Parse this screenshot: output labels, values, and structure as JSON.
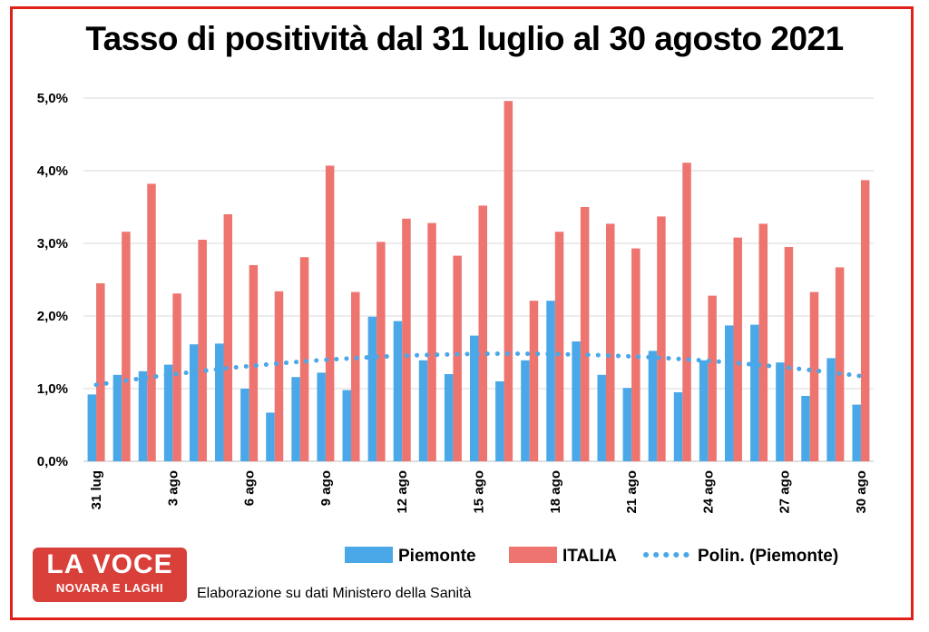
{
  "chart_data": {
    "type": "bar",
    "title": "Tasso di positività dal 31 luglio al 30 agosto 2021",
    "xlabel": "",
    "ylabel": "",
    "ylim": [
      0,
      5
    ],
    "yticks": [
      "0,0%",
      "1,0%",
      "2,0%",
      "3,0%",
      "4,0%",
      "5,0%"
    ],
    "grid": true,
    "legend_placement": "bottom",
    "categories": [
      "31 lug",
      "1 ago",
      "2 ago",
      "3 ago",
      "4 ago",
      "5 ago",
      "6 ago",
      "7 ago",
      "8 ago",
      "9 ago",
      "10 ago",
      "11 ago",
      "12 ago",
      "13 ago",
      "14 ago",
      "15 ago",
      "16 ago",
      "17 ago",
      "18 ago",
      "19 ago",
      "20 ago",
      "21 ago",
      "22 ago",
      "23 ago",
      "24 ago",
      "25 ago",
      "26 ago",
      "27 ago",
      "28 ago",
      "29 ago",
      "30 ago"
    ],
    "shown_tick_labels": [
      "31 lug",
      "3 ago",
      "6 ago",
      "9 ago",
      "12 ago",
      "15 ago",
      "18 ago",
      "21 ago",
      "24 ago",
      "27 ago",
      "30 ago"
    ],
    "series": [
      {
        "name": "Piemonte",
        "color": "#4aa8e8",
        "values": [
          0.92,
          1.19,
          1.24,
          1.33,
          1.61,
          1.62,
          1.0,
          0.67,
          1.16,
          1.22,
          0.98,
          1.99,
          1.93,
          1.39,
          1.2,
          1.73,
          1.1,
          1.39,
          2.21,
          1.65,
          1.19,
          1.01,
          1.52,
          0.95,
          1.39,
          1.87,
          1.88,
          1.36,
          0.9,
          1.42,
          0.78
        ]
      },
      {
        "name": "ITALIA",
        "color": "#ee7470",
        "values": [
          2.45,
          3.16,
          3.82,
          2.31,
          3.05,
          3.4,
          2.7,
          2.34,
          2.81,
          4.07,
          2.33,
          3.02,
          3.34,
          3.28,
          2.83,
          3.52,
          4.96,
          2.21,
          3.16,
          3.5,
          3.27,
          2.93,
          3.37,
          4.11,
          2.28,
          3.08,
          3.27,
          2.95,
          2.33,
          2.67,
          3.87
        ]
      }
    ],
    "trendline": {
      "name": "Polin. (Piemonte)",
      "color": "#4aa8e8",
      "style": "dotted"
    }
  },
  "logo": {
    "line1": "LA VOCE",
    "line2": "NOVARA E LAGHI"
  },
  "source_note": "Elaborazione su dati Ministero della Sanità"
}
